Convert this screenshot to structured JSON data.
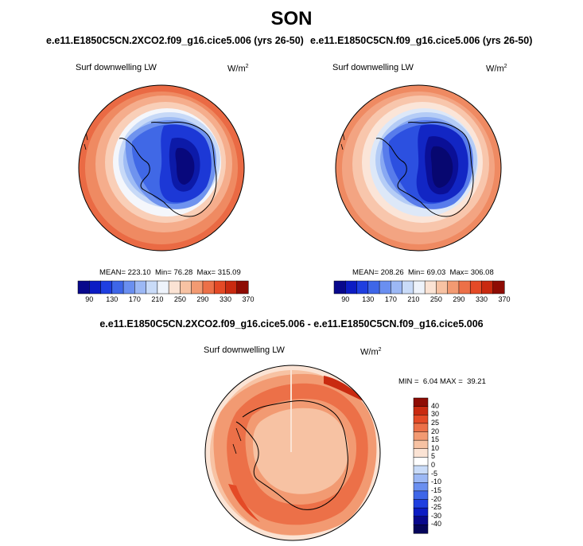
{
  "season_title": "SON",
  "panels": [
    {
      "case_title": "e.e11.E1850C5CN.2XCO2.f09_g16.cice5.006 (yrs 26-50)",
      "variable_label": "Surf downwelling LW",
      "units_base": "W/m",
      "units_exp": "2",
      "stats": {
        "mean": "223.10",
        "min": "76.28",
        "max": "315.09"
      },
      "stats_labels": {
        "mean": "MEAN=",
        "min": "Min=",
        "max": "Max="
      }
    },
    {
      "case_title": "e.e11.E1850C5CN.f09_g16.cice5.006 (yrs 26-50)",
      "variable_label": "Surf downwelling LW",
      "units_base": "W/m",
      "units_exp": "2",
      "stats": {
        "mean": "208.26",
        "min": "69.03",
        "max": "306.08"
      },
      "stats_labels": {
        "mean": "MEAN=",
        "min": "Min=",
        "max": "Max="
      }
    }
  ],
  "difference": {
    "title": "e.e11.E1850C5CN.2XCO2.f09_g16.cice5.006 - e.e11.E1850C5CN.f09_g16.cice5.006",
    "variable_label": "Surf downwelling LW",
    "units_base": "W/m",
    "units_exp": "2",
    "min_label": "MIN =",
    "min_value": "6.04",
    "max_label": "MAX =",
    "max_value": "39.21"
  },
  "chart_data": [
    {
      "type": "heatmap",
      "projection": "south-polar-stereographic",
      "colorbar": {
        "orientation": "horizontal",
        "tick_labels": [
          "90",
          "130",
          "170",
          "210",
          "250",
          "290",
          "330",
          "370"
        ],
        "colors": [
          "#08088c",
          "#0c1cc4",
          "#1f3fe0",
          "#3e66e8",
          "#6a8ff0",
          "#9cb8f5",
          "#c9dbf8",
          "#eef3fb",
          "#fbe3d4",
          "#f7c2a3",
          "#f29a72",
          "#ec7048",
          "#e44a26",
          "#c92a10",
          "#8e0c04"
        ]
      },
      "stats": {
        "mean": 223.1,
        "min": 76.28,
        "max": 315.09
      }
    },
    {
      "type": "heatmap",
      "projection": "south-polar-stereographic",
      "colorbar": {
        "orientation": "horizontal",
        "tick_labels": [
          "90",
          "130",
          "170",
          "210",
          "250",
          "290",
          "330",
          "370"
        ],
        "colors": [
          "#08088c",
          "#0c1cc4",
          "#1f3fe0",
          "#3e66e8",
          "#6a8ff0",
          "#9cb8f5",
          "#c9dbf8",
          "#eef3fb",
          "#fbe3d4",
          "#f7c2a3",
          "#f29a72",
          "#ec7048",
          "#e44a26",
          "#c92a10",
          "#8e0c04"
        ]
      },
      "stats": {
        "mean": 208.26,
        "min": 69.03,
        "max": 306.08
      }
    },
    {
      "type": "heatmap",
      "projection": "south-polar-stereographic",
      "colorbar": {
        "orientation": "vertical",
        "tick_labels": [
          "40",
          "30",
          "25",
          "20",
          "15",
          "10",
          "5",
          "0",
          "-5",
          "-10",
          "-15",
          "-20",
          "-25",
          "-30",
          "-40"
        ],
        "colors": [
          "#8e0c04",
          "#c92a10",
          "#e44a26",
          "#ec7048",
          "#f29a72",
          "#f7c2a3",
          "#fbe3d4",
          "#ffffff",
          "#c9dbf8",
          "#9cb8f5",
          "#6a8ff0",
          "#3e66e8",
          "#1f3fe0",
          "#0c1cc4",
          "#08088c",
          "#05055a"
        ]
      },
      "stats": {
        "min": 6.04,
        "max": 39.21
      }
    }
  ]
}
